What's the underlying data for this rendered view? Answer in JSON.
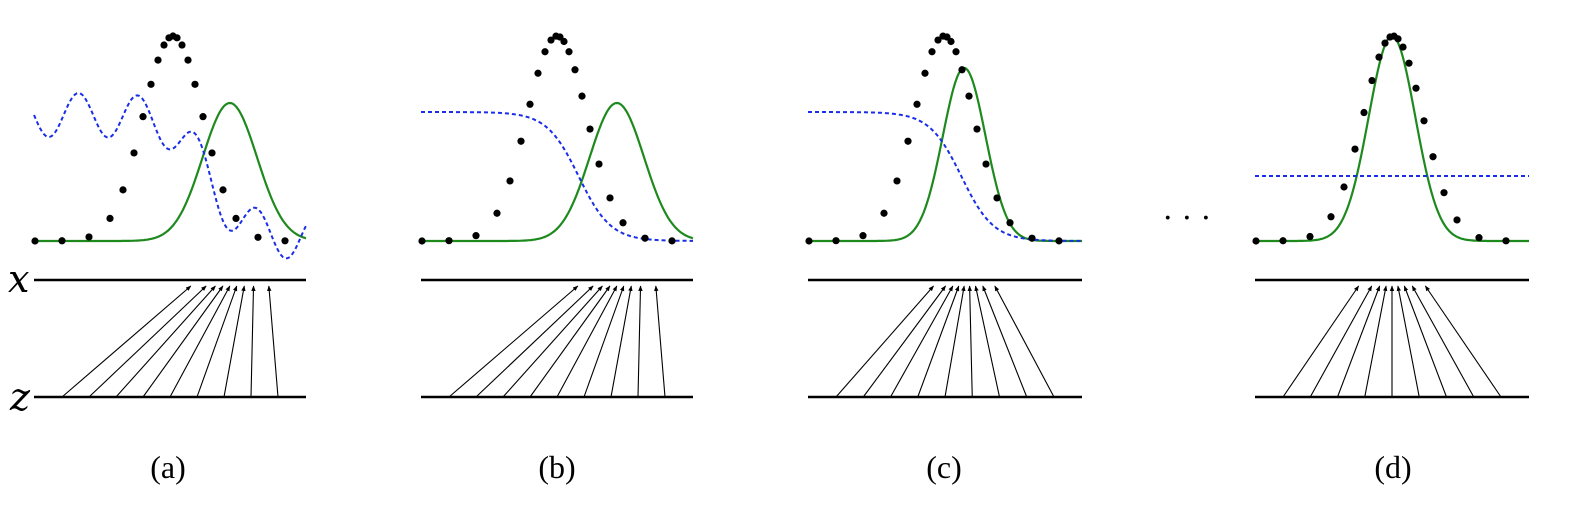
{
  "axis_labels": {
    "x": "x",
    "z": "z"
  },
  "ellipsis": "· · ·",
  "colors": {
    "generator_density": "#1e8a1e",
    "discriminator": "#1a2eea",
    "data_points": "#000000",
    "axes": "#000000"
  },
  "panels": [
    {
      "caption": "(a)",
      "discriminator": "wavy",
      "generator_mean": 0.72,
      "generator_width": 0.1
    },
    {
      "caption": "(b)",
      "discriminator": "sigmoid",
      "generator_mean": 0.72,
      "generator_width": 0.1
    },
    {
      "caption": "(c)",
      "discriminator": "sigmoid",
      "generator_mean": 0.57,
      "generator_width": 0.078
    },
    {
      "caption": "(d)",
      "discriminator": "flat",
      "generator_mean": 0.5,
      "generator_width": 0.085
    }
  ]
}
